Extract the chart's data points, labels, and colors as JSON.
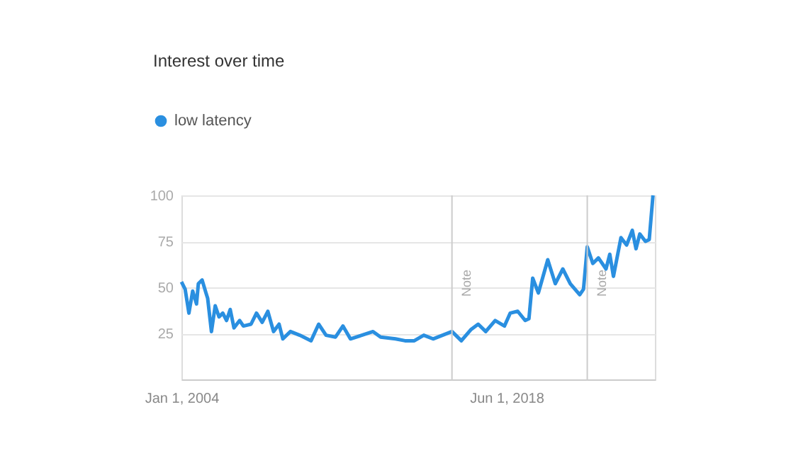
{
  "chart_data": {
    "type": "line",
    "title": "Interest over time",
    "x": [
      "2004-01",
      "2004-03",
      "2004-05",
      "2004-07",
      "2004-09",
      "2004-10",
      "2004-12",
      "2005-02",
      "2005-03",
      "2005-05",
      "2005-07",
      "2005-09",
      "2005-11",
      "2006-01",
      "2006-03",
      "2006-05",
      "2006-08",
      "2006-10",
      "2007-02",
      "2007-05",
      "2007-08",
      "2007-11",
      "2008-02",
      "2008-05",
      "2008-07",
      "2008-11",
      "2009-04",
      "2009-10",
      "2010-02",
      "2010-06",
      "2010-11",
      "2011-03",
      "2011-07",
      "2012-01",
      "2012-07",
      "2012-11",
      "2013-07",
      "2013-12",
      "2014-05",
      "2014-10",
      "2015-03",
      "2015-08",
      "2016-01",
      "2016-06",
      "2016-11",
      "2017-03",
      "2017-07",
      "2017-12",
      "2018-05",
      "2018-08",
      "2018-12",
      "2019-04",
      "2019-06",
      "2019-08",
      "2019-11",
      "2020-04",
      "2020-08",
      "2020-12",
      "2021-04",
      "2021-09",
      "2021-11",
      "2022-01",
      "2022-04",
      "2022-07",
      "2022-11",
      "2023-01",
      "2023-03",
      "2023-07",
      "2023-10",
      "2024-01",
      "2024-03",
      "2024-05",
      "2024-08",
      "2024-10",
      "2024-12"
    ],
    "series": [
      {
        "name": "low latency",
        "color": "#2a8fe0",
        "values": [
          53,
          49,
          36,
          48,
          41,
          52,
          54,
          47,
          44,
          26,
          40,
          34,
          36,
          32,
          38,
          28,
          32,
          29,
          30,
          36,
          31,
          37,
          26,
          30,
          22,
          26,
          24,
          21,
          30,
          24,
          23,
          29,
          22,
          24,
          26,
          23,
          22,
          21,
          21,
          24,
          22,
          24,
          26,
          21,
          27,
          30,
          26,
          32,
          29,
          36,
          37,
          32,
          33,
          55,
          47,
          65,
          52,
          60,
          52,
          46,
          49,
          72,
          63,
          66,
          60,
          68,
          56,
          77,
          73,
          81,
          71,
          79,
          75,
          76,
          100
        ]
      }
    ],
    "xlim": [
      "2004-01-01",
      "2025-01-01"
    ],
    "xticks": [
      {
        "value": "2004-01-01",
        "label": "Jan 1, 2004"
      },
      {
        "value": "2018-06-01",
        "label": "Jun 1, 2018"
      }
    ],
    "ylim": [
      0,
      100
    ],
    "yticks": [
      25,
      50,
      75,
      100
    ],
    "ref_lines": [
      {
        "axis": "x",
        "value": "2016-01-01",
        "label": "Note",
        "color": "#cccccc"
      },
      {
        "axis": "x",
        "value": "2022-01-01",
        "label": "Note",
        "color": "#cccccc"
      }
    ],
    "grid": "y",
    "legend": "top left",
    "marker": "none",
    "line_style": "solid"
  }
}
